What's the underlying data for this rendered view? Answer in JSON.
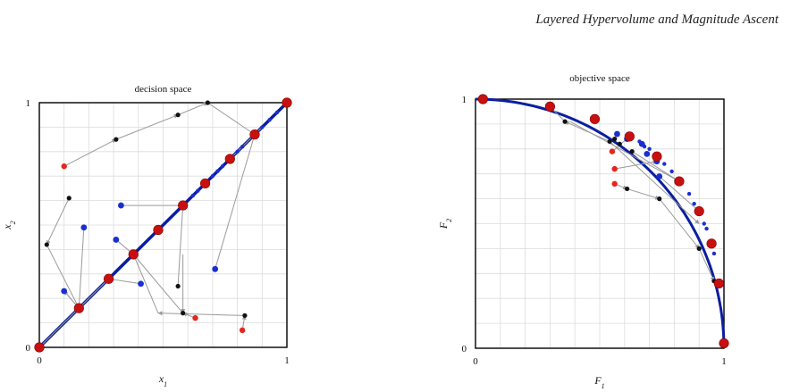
{
  "figure": {
    "title": "Layered Hypervolume and Magnitude Ascent"
  },
  "colors": {
    "front": "#0a1ea0",
    "blue_point": "#1a2fd0",
    "black_point": "#111111",
    "red_point": "#e8251c",
    "big_red": "#c81010",
    "arrow": "#9a9a9a",
    "grid": "#dcdcdc"
  },
  "chart_data": [
    {
      "type": "scatter",
      "title": "decision space",
      "xlabel": "x_1",
      "ylabel": "x_2",
      "xlim": [
        0,
        1
      ],
      "ylim": [
        0,
        1
      ],
      "x_ticks": [
        "0",
        "1"
      ],
      "y_ticks": [
        "0",
        "1"
      ],
      "grid": true,
      "front_line": [
        [
          0,
          0
        ],
        [
          1,
          1
        ]
      ],
      "optimal_points": [
        [
          0,
          0
        ],
        [
          0.16,
          0.16
        ],
        [
          0.28,
          0.28
        ],
        [
          0.38,
          0.38
        ],
        [
          0.48,
          0.48
        ],
        [
          0.58,
          0.58
        ],
        [
          0.67,
          0.67
        ],
        [
          0.77,
          0.77
        ],
        [
          0.87,
          0.87
        ],
        [
          1,
          1
        ]
      ],
      "front_dots": [
        [
          0.62,
          0.62
        ],
        [
          0.64,
          0.64
        ],
        [
          0.7,
          0.7
        ],
        [
          0.72,
          0.72
        ],
        [
          0.74,
          0.74
        ],
        [
          0.8,
          0.8
        ],
        [
          0.82,
          0.82
        ],
        [
          0.9,
          0.9
        ],
        [
          0.93,
          0.93
        ],
        [
          0.96,
          0.96
        ]
      ],
      "blue_points": [
        [
          0.33,
          0.58
        ],
        [
          0.18,
          0.49
        ],
        [
          0.31,
          0.44
        ],
        [
          0.41,
          0.26
        ],
        [
          0.71,
          0.32
        ],
        [
          0.1,
          0.23
        ]
      ],
      "black_points": [
        [
          0.12,
          0.61
        ],
        [
          0.03,
          0.42
        ],
        [
          0.56,
          0.25
        ],
        [
          0.58,
          0.14
        ],
        [
          0.31,
          0.85
        ],
        [
          0.56,
          0.95
        ],
        [
          0.68,
          1.0
        ],
        [
          0.83,
          0.13
        ]
      ],
      "red_points": [
        [
          0.1,
          0.74
        ],
        [
          0.63,
          0.12
        ],
        [
          0.82,
          0.07
        ]
      ],
      "arrows": [
        [
          [
            0.1,
            0.74
          ],
          [
            0.31,
            0.85
          ]
        ],
        [
          [
            0.31,
            0.85
          ],
          [
            0.56,
            0.95
          ]
        ],
        [
          [
            0.56,
            0.95
          ],
          [
            0.68,
            1.0
          ]
        ],
        [
          [
            0.68,
            1.0
          ],
          [
            0.87,
            0.87
          ]
        ],
        [
          [
            0.33,
            0.58
          ],
          [
            0.58,
            0.58
          ]
        ],
        [
          [
            0.18,
            0.49
          ],
          [
            0.16,
            0.16
          ]
        ],
        [
          [
            0.31,
            0.44
          ],
          [
            0.38,
            0.38
          ]
        ],
        [
          [
            0.41,
            0.26
          ],
          [
            0.28,
            0.28
          ]
        ],
        [
          [
            0.71,
            0.32
          ],
          [
            0.87,
            0.87
          ]
        ],
        [
          [
            0.1,
            0.23
          ],
          [
            0.16,
            0.16
          ]
        ],
        [
          [
            0.12,
            0.61
          ],
          [
            0.03,
            0.42
          ]
        ],
        [
          [
            0.03,
            0.42
          ],
          [
            0.16,
            0.16
          ]
        ],
        [
          [
            0.56,
            0.25
          ],
          [
            0.58,
            0.58
          ]
        ],
        [
          [
            0.58,
            0.14
          ],
          [
            0.38,
            0.38
          ]
        ],
        [
          [
            0.63,
            0.12
          ],
          [
            0.58,
            0.14
          ]
        ],
        [
          [
            0.82,
            0.07
          ],
          [
            0.83,
            0.13
          ]
        ],
        [
          [
            0.83,
            0.13
          ],
          [
            0.48,
            0.14
          ]
        ],
        [
          [
            0.48,
            0.14
          ],
          [
            0.38,
            0.38
          ]
        ],
        [
          [
            0.58,
            0.38
          ],
          [
            0.58,
            0.14
          ]
        ],
        [
          [
            0.16,
            0.16
          ],
          [
            0.1,
            0.23
          ]
        ],
        [
          [
            0.16,
            0.16
          ],
          [
            0.0,
            0.0
          ]
        ],
        [
          [
            0.28,
            0.28
          ],
          [
            0.16,
            0.16
          ]
        ],
        [
          [
            0.9,
            0.9
          ],
          [
            0.77,
            0.77
          ]
        ]
      ]
    },
    {
      "type": "scatter",
      "title": "objective space",
      "xlabel": "F_1",
      "ylabel": "F_2",
      "xlim": [
        0,
        1
      ],
      "ylim": [
        0,
        1
      ],
      "x_ticks": [
        "0",
        "1"
      ],
      "y_ticks": [
        "0",
        "1"
      ],
      "grid": true,
      "front_curve": "x^2 + y^2 = 1",
      "optimal_points": [
        [
          0.03,
          1.0
        ],
        [
          0.3,
          0.97
        ],
        [
          0.48,
          0.92
        ],
        [
          0.62,
          0.85
        ],
        [
          0.73,
          0.77
        ],
        [
          0.82,
          0.67
        ],
        [
          0.9,
          0.55
        ],
        [
          0.95,
          0.42
        ],
        [
          0.98,
          0.26
        ],
        [
          1.0,
          0.02
        ]
      ],
      "front_dots": [
        [
          0.66,
          0.83
        ],
        [
          0.68,
          0.81
        ],
        [
          0.7,
          0.8
        ],
        [
          0.76,
          0.74
        ],
        [
          0.79,
          0.71
        ],
        [
          0.86,
          0.62
        ],
        [
          0.88,
          0.58
        ],
        [
          0.92,
          0.5
        ],
        [
          0.93,
          0.48
        ],
        [
          0.96,
          0.38
        ]
      ],
      "blue_points": [
        [
          0.57,
          0.86
        ],
        [
          0.61,
          0.84
        ],
        [
          0.67,
          0.82
        ],
        [
          0.69,
          0.78
        ],
        [
          0.74,
          0.69
        ],
        [
          0.73,
          0.75
        ]
      ],
      "black_points": [
        [
          0.36,
          0.91
        ],
        [
          0.54,
          0.83
        ],
        [
          0.56,
          0.84
        ],
        [
          0.58,
          0.82
        ],
        [
          0.63,
          0.79
        ],
        [
          0.61,
          0.64
        ],
        [
          0.74,
          0.6
        ],
        [
          0.9,
          0.4
        ],
        [
          0.96,
          0.27
        ]
      ],
      "red_points": [
        [
          0.55,
          0.79
        ],
        [
          0.56,
          0.72
        ],
        [
          0.56,
          0.66
        ]
      ],
      "arrows": [
        [
          [
            0.36,
            0.91
          ],
          [
            0.3,
            0.97
          ]
        ],
        [
          [
            0.54,
            0.83
          ],
          [
            0.36,
            0.91
          ]
        ],
        [
          [
            0.56,
            0.66
          ],
          [
            0.61,
            0.64
          ]
        ],
        [
          [
            0.61,
            0.64
          ],
          [
            0.74,
            0.6
          ]
        ],
        [
          [
            0.74,
            0.6
          ],
          [
            0.9,
            0.4
          ]
        ],
        [
          [
            0.9,
            0.4
          ],
          [
            0.96,
            0.27
          ]
        ],
        [
          [
            0.56,
            0.72
          ],
          [
            0.73,
            0.75
          ]
        ],
        [
          [
            0.55,
            0.79
          ],
          [
            0.62,
            0.85
          ]
        ],
        [
          [
            0.63,
            0.79
          ],
          [
            0.82,
            0.67
          ]
        ],
        [
          [
            0.74,
            0.69
          ],
          [
            0.9,
            0.55
          ]
        ],
        [
          [
            0.54,
            0.83
          ],
          [
            0.9,
            0.5
          ]
        ],
        [
          [
            0.38,
            0.91
          ],
          [
            0.82,
            0.67
          ]
        ]
      ]
    }
  ]
}
